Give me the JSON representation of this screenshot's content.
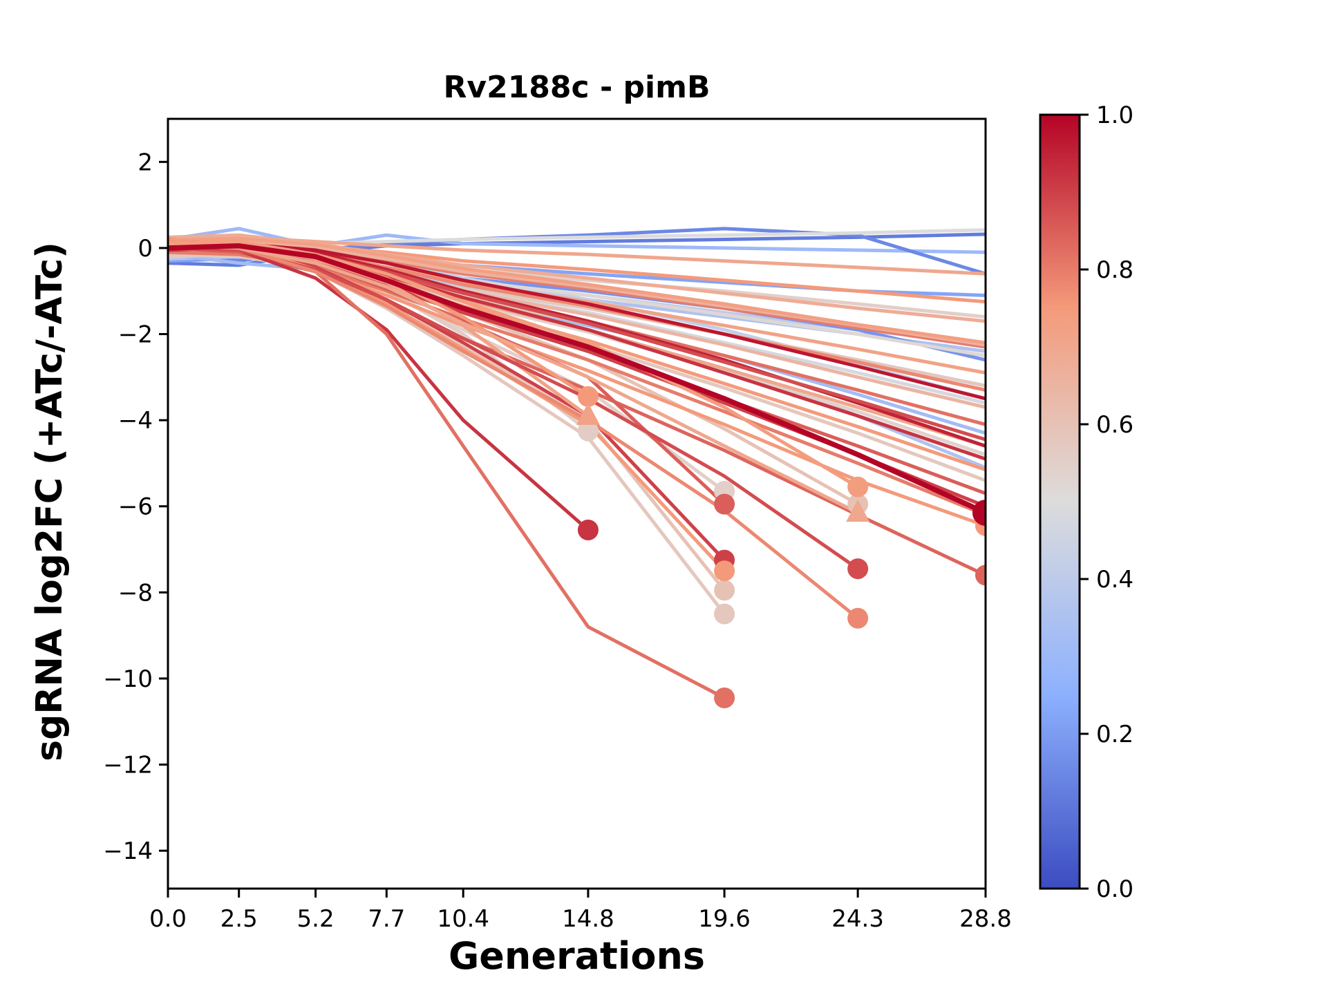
{
  "chart": {
    "title": "Rv2188c - pimB",
    "xlabel": "Generations",
    "ylabel": "sgRNA log2FC (+ATc/-ATc)"
  },
  "chart_data": {
    "type": "line",
    "title": "Rv2188c - pimB",
    "xlabel": "Generations",
    "ylabel": "sgRNA log2FC (+ATc/-ATc)",
    "grid": false,
    "x": [
      0.0,
      2.5,
      5.2,
      7.7,
      10.4,
      14.8,
      19.6,
      24.3,
      28.8
    ],
    "x_tick_labels": [
      "0.0",
      "2.5",
      "5.2",
      "7.7",
      "10.4",
      "14.8",
      "19.6",
      "24.3",
      "28.8"
    ],
    "y_ticks": [
      2,
      0,
      -2,
      -4,
      -6,
      -8,
      -10,
      -12,
      -14
    ],
    "y_tick_labels": [
      "2",
      "0",
      "−2",
      "−4",
      "−6",
      "−8",
      "−10",
      "−12",
      "−14"
    ],
    "xlim": [
      0,
      28.8
    ],
    "ylim": [
      -14.88,
      3.0
    ],
    "colormap": {
      "name": "coolwarm",
      "stops": [
        [
          0.0,
          "#3b4cc0"
        ],
        [
          0.25,
          "#8db0fe"
        ],
        [
          0.5,
          "#dddcdc"
        ],
        [
          0.75,
          "#f49a7b"
        ],
        [
          1.0,
          "#b40426"
        ]
      ]
    },
    "colorbar": {
      "vmin": 0.0,
      "vmax": 1.0,
      "tick_values": [
        1.0,
        0.8,
        0.6,
        0.4,
        0.2,
        0.0
      ],
      "tick_labels": [
        "1.0",
        "0.8",
        "0.6",
        "0.4",
        "0.2",
        "0.0"
      ]
    },
    "series": [
      {
        "c": 0.12,
        "lw": 5,
        "y": [
          -0.35,
          -0.4,
          -0.1,
          0.05,
          0.1,
          0.15,
          0.2,
          0.25,
          0.32
        ]
      },
      {
        "c": 0.3,
        "lw": 5,
        "y": [
          0.2,
          0.45,
          0.05,
          0.3,
          0.1,
          0.05,
          0.0,
          -0.05,
          -0.1
        ]
      },
      {
        "c": 0.22,
        "lw": 5,
        "y": [
          -0.3,
          -0.25,
          -0.12,
          -0.22,
          -0.4,
          -0.6,
          -0.8,
          -1.0,
          -1.1
        ]
      },
      {
        "c": 0.15,
        "lw": 5,
        "y": [
          -0.2,
          -0.3,
          -0.05,
          0.1,
          0.2,
          0.3,
          0.45,
          0.3,
          -0.6
        ]
      },
      {
        "c": 0.35,
        "lw": 5,
        "y": [
          0.1,
          0.0,
          -0.2,
          -0.5,
          -0.8,
          -1.2,
          -1.6,
          -2.0,
          -2.4
        ]
      },
      {
        "c": 0.4,
        "lw": 5,
        "y": [
          -0.1,
          -0.15,
          -0.3,
          -0.55,
          -0.8,
          -1.1,
          -1.5,
          -1.9,
          -2.2
        ]
      },
      {
        "c": 0.18,
        "lw": 5,
        "y": [
          0.0,
          -0.1,
          -0.25,
          -0.45,
          -0.7,
          -1.0,
          -1.4,
          -1.9,
          -2.6
        ]
      },
      {
        "c": 0.45,
        "lw": 5,
        "y": [
          0.05,
          0.1,
          -0.1,
          -0.3,
          -0.6,
          -0.9,
          -1.3,
          -1.8,
          -2.3
        ]
      },
      {
        "c": 0.38,
        "lw": 5,
        "y": [
          -0.25,
          -0.2,
          -0.35,
          -0.6,
          -0.9,
          -1.4,
          -2.0,
          -2.6,
          -3.2
        ]
      },
      {
        "c": 0.42,
        "lw": 5,
        "y": [
          0.15,
          0.2,
          0.0,
          -0.3,
          -0.7,
          -1.2,
          -1.9,
          -2.7,
          -3.5
        ]
      },
      {
        "c": 0.32,
        "lw": 5,
        "y": [
          -0.15,
          -0.35,
          -0.5,
          -0.8,
          -1.2,
          -1.8,
          -2.5,
          -3.4,
          -4.3
        ]
      },
      {
        "c": 0.36,
        "lw": 5,
        "y": [
          0.0,
          0.1,
          -0.3,
          -0.7,
          -1.2,
          -1.9,
          -2.8,
          -3.9,
          -5.1
        ]
      },
      {
        "c": 0.5,
        "lw": 5,
        "y": [
          0.1,
          0.15,
          0.1,
          0.15,
          0.2,
          0.25,
          0.3,
          0.35,
          0.42
        ]
      },
      {
        "c": 0.55,
        "lw": 5,
        "y": [
          -0.1,
          -0.05,
          -0.15,
          -0.3,
          -0.5,
          -0.75,
          -1.0,
          -1.3,
          -1.6
        ]
      },
      {
        "c": 0.52,
        "lw": 5,
        "y": [
          0.05,
          0.0,
          -0.2,
          -0.45,
          -0.75,
          -1.1,
          -1.55,
          -2.0,
          -2.5
        ]
      },
      {
        "c": 0.58,
        "lw": 5,
        "y": [
          -0.2,
          -0.15,
          -0.3,
          -0.6,
          -0.95,
          -1.4,
          -2.0,
          -2.6,
          -3.2
        ]
      },
      {
        "c": 0.48,
        "lw": 5,
        "y": [
          0.0,
          0.05,
          -0.25,
          -0.6,
          -1.0,
          -1.5,
          -2.2,
          -2.9,
          -3.6
        ]
      },
      {
        "c": 0.6,
        "lw": 5,
        "y": [
          -0.05,
          -0.1,
          -0.35,
          -0.7,
          -1.15,
          -1.75,
          -2.5,
          -3.3,
          -4.1
        ]
      },
      {
        "c": 0.54,
        "lw": 5,
        "y": [
          0.1,
          0.05,
          -0.3,
          -0.75,
          -1.25,
          -1.95,
          -2.85,
          -3.8,
          -4.8
        ]
      },
      {
        "c": 0.58,
        "lw": 5,
        "y": [
          -0.15,
          -0.2,
          -0.45,
          -0.9,
          -1.45,
          -2.25,
          -3.25,
          -4.3,
          -5.4
        ]
      },
      {
        "c": 0.55,
        "lw": 5,
        "m": "o",
        "y": [
          0.0,
          -0.1,
          -0.4,
          -1.0,
          -1.9,
          -3.3,
          -5.65,
          null,
          null
        ]
      },
      {
        "c": 0.6,
        "lw": 5,
        "m": "o",
        "y": [
          0.05,
          0.0,
          -0.5,
          -1.3,
          -2.3,
          -4.0,
          -7.95,
          null,
          null
        ]
      },
      {
        "c": 0.58,
        "lw": 5,
        "m": "o",
        "y": [
          0.0,
          -0.05,
          -0.55,
          -1.4,
          -2.5,
          -4.4,
          -8.5,
          null,
          null
        ]
      },
      {
        "c": 0.56,
        "lw": 5,
        "m": "o",
        "y": [
          0.05,
          0.1,
          -0.3,
          -1.0,
          -2.0,
          -4.25,
          null,
          null,
          null
        ]
      },
      {
        "c": 0.6,
        "lw": 5,
        "m": "o",
        "y": [
          0.0,
          0.05,
          -0.3,
          -0.8,
          -1.5,
          -2.6,
          -4.2,
          -5.95,
          null
        ]
      },
      {
        "c": 0.7,
        "lw": 5,
        "y": [
          0.2,
          0.25,
          0.15,
          0.05,
          -0.05,
          -0.15,
          -0.3,
          -0.45,
          -0.6
        ]
      },
      {
        "c": 0.75,
        "lw": 5,
        "y": [
          0.15,
          0.2,
          0.05,
          -0.1,
          -0.3,
          -0.5,
          -0.75,
          -1.0,
          -1.25
        ]
      },
      {
        "c": 0.68,
        "lw": 5,
        "y": [
          0.25,
          0.3,
          0.1,
          -0.15,
          -0.4,
          -0.7,
          -1.05,
          -1.4,
          -1.7
        ]
      },
      {
        "c": 0.8,
        "lw": 5,
        "y": [
          0.1,
          0.15,
          -0.05,
          -0.3,
          -0.6,
          -0.95,
          -1.4,
          -1.85,
          -2.3
        ]
      },
      {
        "c": 0.72,
        "lw": 5,
        "y": [
          0.05,
          0.1,
          -0.15,
          -0.45,
          -0.8,
          -1.25,
          -1.8,
          -2.35,
          -2.9
        ]
      },
      {
        "c": 0.78,
        "lw": 5,
        "y": [
          0.2,
          0.1,
          -0.1,
          -0.45,
          -0.85,
          -1.35,
          -2.0,
          -2.65,
          -3.3
        ]
      },
      {
        "c": 0.65,
        "lw": 5,
        "y": [
          0.0,
          0.05,
          -0.2,
          -0.55,
          -1.0,
          -1.55,
          -2.25,
          -3.0,
          -3.7
        ]
      },
      {
        "c": 0.82,
        "lw": 5,
        "y": [
          0.15,
          0.05,
          -0.2,
          -0.6,
          -1.05,
          -1.7,
          -2.5,
          -3.3,
          -4.1
        ]
      },
      {
        "c": 0.7,
        "lw": 5,
        "y": [
          -0.05,
          0.0,
          -0.3,
          -0.7,
          -1.2,
          -1.9,
          -2.8,
          -3.7,
          -4.6
        ]
      },
      {
        "c": 0.75,
        "lw": 5,
        "y": [
          0.1,
          0.0,
          -0.35,
          -0.8,
          -1.35,
          -2.15,
          -3.15,
          -4.15,
          -5.15
        ]
      },
      {
        "c": 0.85,
        "lw": 5,
        "y": [
          0.0,
          -0.05,
          -0.4,
          -0.9,
          -1.5,
          -2.4,
          -3.5,
          -4.6,
          -5.7
        ]
      },
      {
        "c": 0.8,
        "lw": 5,
        "y": [
          -0.1,
          -0.15,
          -0.45,
          -1.0,
          -1.65,
          -2.6,
          -3.8,
          -5.0,
          -6.2
        ]
      },
      {
        "c": 0.66,
        "lw": 5,
        "y": [
          0.12,
          0.18,
          0.0,
          -0.25,
          -0.55,
          -0.9,
          -1.35,
          -1.8,
          -2.25
        ]
      },
      {
        "c": 0.73,
        "lw": 5,
        "y": [
          0.18,
          0.22,
          0.08,
          -0.18,
          -0.48,
          -0.85,
          -1.3,
          -1.78,
          -2.2
        ]
      },
      {
        "c": 0.95,
        "lw": 5,
        "y": [
          0.1,
          0.1,
          -0.1,
          -0.5,
          -1.0,
          -1.7,
          -2.6,
          -3.6,
          -4.6
        ]
      },
      {
        "c": 0.92,
        "lw": 5,
        "y": [
          -0.05,
          0.0,
          -0.25,
          -0.65,
          -1.15,
          -1.9,
          -2.9,
          -3.9,
          -4.9
        ]
      },
      {
        "c": 0.9,
        "lw": 5,
        "y": [
          0.05,
          -0.05,
          -0.35,
          -0.85,
          -1.5,
          -2.4,
          -3.6,
          -4.8,
          -6.0
        ]
      },
      {
        "c": 0.97,
        "lw": 5,
        "y": [
          0.0,
          0.1,
          -0.05,
          -0.35,
          -0.75,
          -1.3,
          -2.0,
          -2.75,
          -3.5
        ]
      },
      {
        "c": 0.88,
        "lw": 5,
        "y": [
          0.15,
          0.1,
          -0.15,
          -0.55,
          -1.05,
          -1.75,
          -2.65,
          -3.55,
          -4.45
        ]
      },
      {
        "c": 0.75,
        "lw": 5,
        "m": "o",
        "y": [
          0.05,
          -0.1,
          -0.5,
          -1.1,
          -1.8,
          -2.85,
          -4.1,
          -5.4,
          -6.45
        ]
      },
      {
        "c": 0.84,
        "lw": 5,
        "m": "o",
        "y": [
          0.0,
          -0.1,
          -0.55,
          -1.25,
          -2.1,
          -3.3,
          -4.7,
          -6.2,
          -7.6
        ]
      },
      {
        "c": 0.92,
        "lw": 5,
        "m": "o",
        "y": [
          0.0,
          -0.05,
          -0.7,
          -1.9,
          -4.0,
          -6.55,
          null,
          null,
          null
        ]
      },
      {
        "c": 0.82,
        "lw": 5,
        "m": "o",
        "y": [
          0.05,
          0.0,
          -0.55,
          -2.0,
          -4.6,
          -8.8,
          -10.45,
          null,
          null
        ]
      },
      {
        "c": 0.9,
        "lw": 5,
        "m": "o",
        "y": [
          0.0,
          0.05,
          -0.45,
          -1.2,
          -2.2,
          -3.9,
          -7.25,
          null,
          null
        ]
      },
      {
        "c": 0.75,
        "lw": 5,
        "m": "o",
        "y": [
          0.1,
          0.05,
          -0.5,
          -1.3,
          -2.35,
          -4.1,
          -7.5,
          null,
          null
        ]
      },
      {
        "c": 0.85,
        "lw": 5,
        "m": "o",
        "y": [
          0.05,
          0.0,
          -0.35,
          -0.95,
          -1.7,
          -3.0,
          -5.95,
          null,
          null
        ]
      },
      {
        "c": 0.75,
        "lw": 5,
        "m": "o",
        "y": [
          0.15,
          0.1,
          -0.2,
          -0.7,
          -1.6,
          -3.45,
          null,
          null,
          null
        ]
      },
      {
        "c": 0.72,
        "lw": 5,
        "m": "^",
        "y": [
          0.1,
          0.05,
          -0.25,
          -0.8,
          -1.8,
          -3.9,
          null,
          null,
          null
        ]
      },
      {
        "c": 0.88,
        "lw": 5,
        "m": "o",
        "y": [
          0.0,
          -0.05,
          -0.5,
          -1.2,
          -2.1,
          -3.5,
          -5.3,
          -7.45,
          null
        ]
      },
      {
        "c": 0.78,
        "lw": 5,
        "m": "o",
        "y": [
          0.05,
          0.0,
          -0.55,
          -1.35,
          -2.4,
          -4.0,
          -6.1,
          -8.6,
          null
        ]
      },
      {
        "c": 0.74,
        "lw": 5,
        "m": "o",
        "y": [
          0.1,
          0.15,
          -0.15,
          -0.6,
          -1.25,
          -2.2,
          -3.7,
          -5.55,
          null
        ]
      },
      {
        "c": 0.7,
        "lw": 5,
        "m": "^",
        "y": [
          0.05,
          0.0,
          -0.35,
          -0.9,
          -1.75,
          -3.0,
          -4.6,
          -6.15,
          null
        ]
      },
      {
        "c": 1.0,
        "lw": 7.5,
        "m": "o",
        "mr": 19,
        "y": [
          0.0,
          0.05,
          -0.2,
          -0.75,
          -1.4,
          -2.3,
          -3.5,
          -4.8,
          -6.15
        ]
      }
    ]
  }
}
